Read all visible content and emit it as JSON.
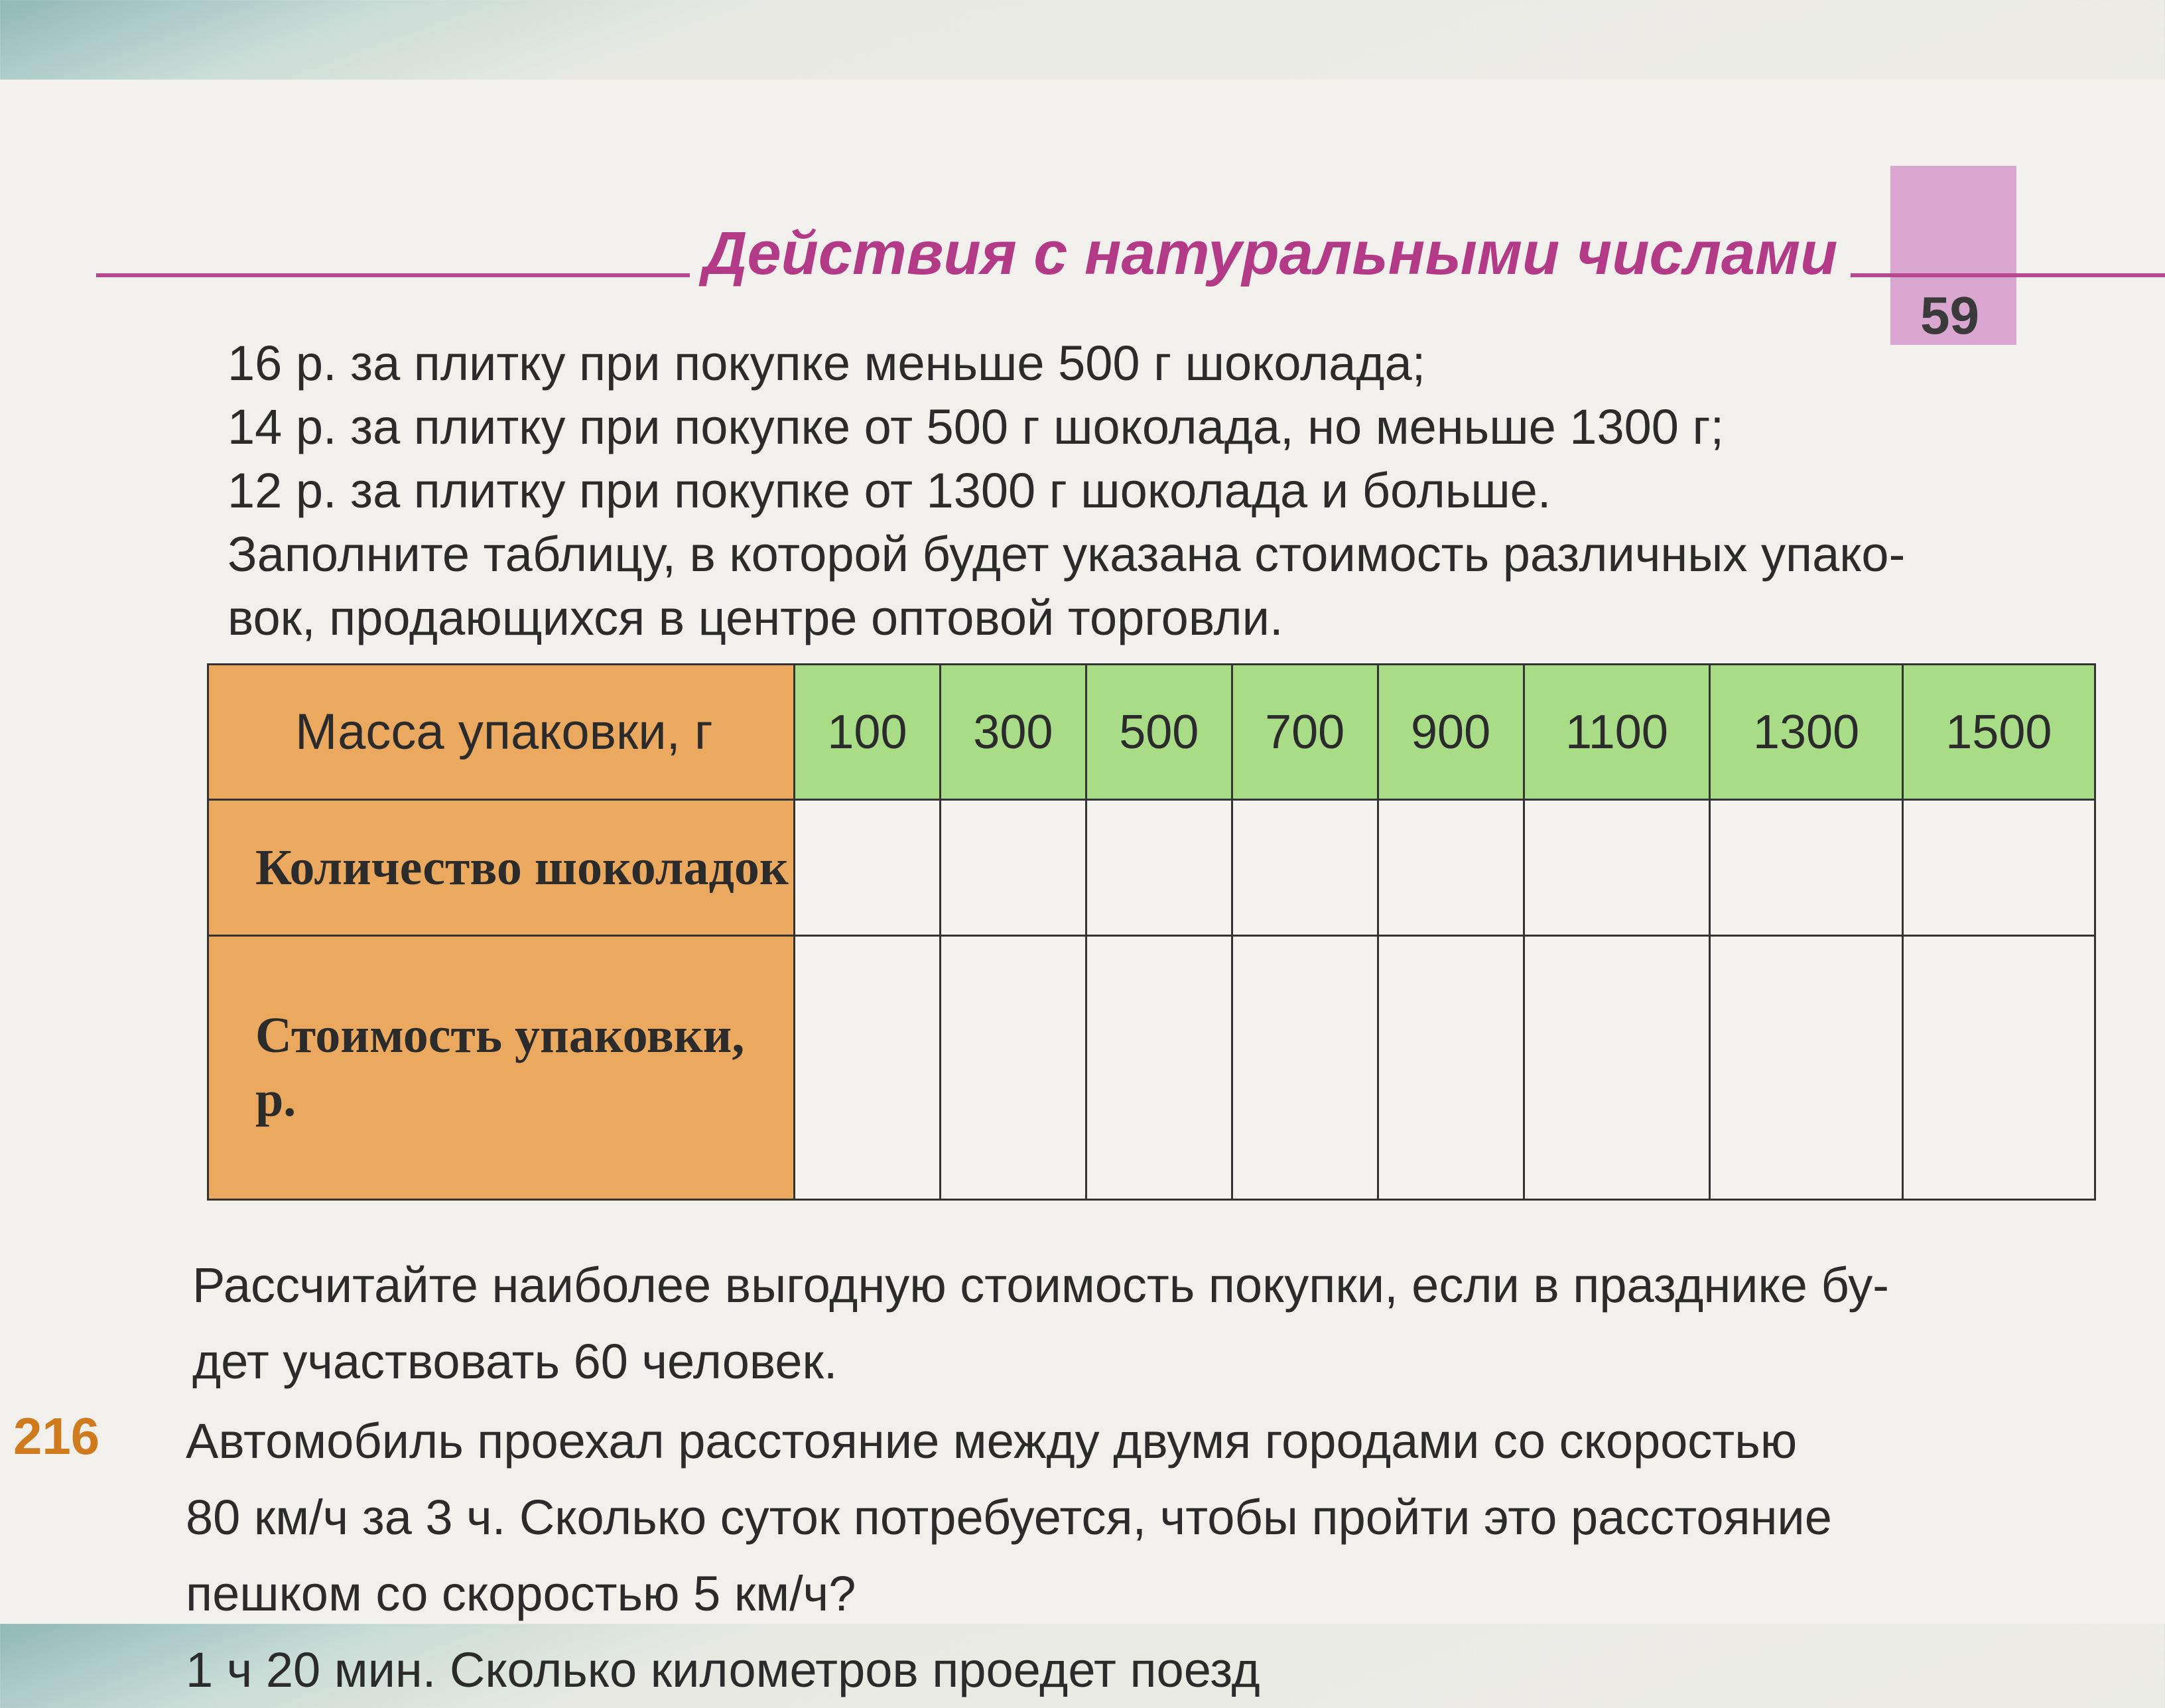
{
  "header": {
    "title": "Действия с натуральными числами",
    "page_number": "59"
  },
  "intro_lines": [
    "16 р. за плитку при покупке меньше 500 г шоколада;",
    "14 р. за плитку при покупке от 500 г шоколада, но меньше 1300 г;",
    "12 р. за плитку при покупке от 1300 г шоколада и больше.",
    "Заполните таблицу, в которой будет указана стоимость различных упако-",
    "вок, продающихся в центре оптовой торговли."
  ],
  "table": {
    "header": [
      "Масса упаковки, г",
      "100",
      "300",
      "500",
      "700",
      "900",
      "1100",
      "1300",
      "1500"
    ],
    "rows": [
      [
        "Количество шоколадок"
      ],
      [
        "Стоимость упаковки, р."
      ]
    ]
  },
  "task_lines": [
    "Рассчитайте наиболее выгодную стоимость покупки, если в празднике бу-",
    "дет участвовать 60 человек."
  ],
  "problem": {
    "number": "216",
    "lines": [
      "Автомобиль проехал расстояние между двумя городами со скоростью",
      "80 км/ч за 3 ч. Сколько суток потребуется, чтобы пройти это расстояние",
      "пешком со скоростью 5 км/ч?",
      "1 ч 20 мин. Сколько километров проедет поезд"
    ]
  }
}
